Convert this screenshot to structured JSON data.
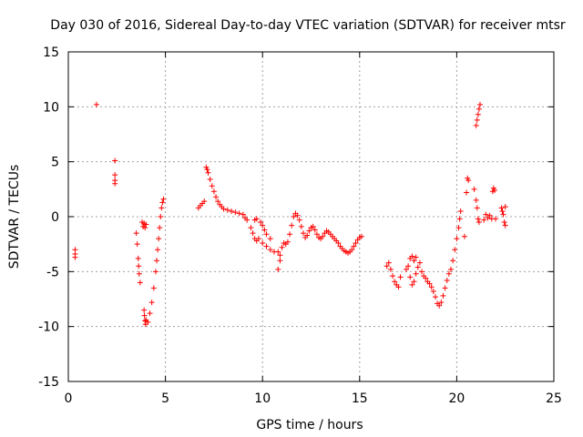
{
  "chart_data": {
    "type": "scatter",
    "title": "Day 030 of 2016, Sidereal Day-to-day VTEC variation (SDTVAR) for receiver mtsr",
    "xlabel": "GPS time / hours",
    "ylabel": "SDTVAR / TECUs",
    "xlim": [
      0,
      25
    ],
    "ylim": [
      -15,
      15
    ],
    "xticks": [
      0,
      5,
      10,
      15,
      20,
      25
    ],
    "yticks": [
      -15,
      -10,
      -5,
      0,
      5,
      10,
      15
    ],
    "xtick_labels": [
      "0",
      "5",
      "10",
      "15",
      "20",
      "25"
    ],
    "ytick_labels": [
      "-15",
      "-10",
      "-5",
      "0",
      "5",
      "10",
      "15"
    ],
    "grid": true,
    "marker": "+",
    "color": "#ff0000",
    "series": [
      {
        "name": "SDTVAR",
        "points": [
          [
            0.35,
            -3.0
          ],
          [
            0.35,
            -3.4
          ],
          [
            0.35,
            -3.7
          ],
          [
            1.45,
            10.2
          ],
          [
            2.4,
            5.1
          ],
          [
            2.4,
            3.8
          ],
          [
            2.4,
            3.3
          ],
          [
            2.4,
            3.0
          ],
          [
            3.5,
            -1.5
          ],
          [
            3.55,
            -2.5
          ],
          [
            3.6,
            -3.8
          ],
          [
            3.62,
            -4.5
          ],
          [
            3.65,
            -5.2
          ],
          [
            3.7,
            -6.0
          ],
          [
            3.8,
            -0.5
          ],
          [
            3.85,
            -0.9
          ],
          [
            3.9,
            -0.6
          ],
          [
            3.95,
            -1.0
          ],
          [
            4.0,
            -0.7
          ],
          [
            3.9,
            -8.5
          ],
          [
            3.92,
            -9.0
          ],
          [
            3.95,
            -9.5
          ],
          [
            3.98,
            -9.8
          ],
          [
            4.0,
            -9.4
          ],
          [
            4.1,
            -9.6
          ],
          [
            4.2,
            -8.8
          ],
          [
            4.3,
            -7.8
          ],
          [
            4.4,
            -6.5
          ],
          [
            4.5,
            -5.0
          ],
          [
            4.55,
            -4.0
          ],
          [
            4.6,
            -3.0
          ],
          [
            4.65,
            -2.0
          ],
          [
            4.7,
            -1.0
          ],
          [
            4.75,
            0.0
          ],
          [
            4.8,
            0.8
          ],
          [
            4.85,
            1.3
          ],
          [
            4.9,
            1.6
          ],
          [
            6.7,
            0.8
          ],
          [
            6.8,
            1.0
          ],
          [
            6.9,
            1.2
          ],
          [
            7.0,
            1.4
          ],
          [
            7.1,
            4.5
          ],
          [
            7.15,
            4.3
          ],
          [
            7.2,
            4.0
          ],
          [
            7.3,
            3.4
          ],
          [
            7.4,
            2.8
          ],
          [
            7.5,
            2.3
          ],
          [
            7.6,
            1.8
          ],
          [
            7.7,
            1.4
          ],
          [
            7.8,
            1.1
          ],
          [
            7.9,
            0.9
          ],
          [
            8.0,
            0.7
          ],
          [
            8.2,
            0.6
          ],
          [
            8.4,
            0.5
          ],
          [
            8.6,
            0.4
          ],
          [
            8.8,
            0.3
          ],
          [
            9.0,
            0.2
          ],
          [
            9.1,
            -0.1
          ],
          [
            9.2,
            -0.3
          ],
          [
            9.4,
            -1.0
          ],
          [
            9.5,
            -1.5
          ],
          [
            9.6,
            -2.0
          ],
          [
            9.7,
            -2.2
          ],
          [
            9.8,
            -2.0
          ],
          [
            9.6,
            -0.3
          ],
          [
            9.7,
            -0.2
          ],
          [
            9.9,
            -0.5
          ],
          [
            10.0,
            -0.8
          ],
          [
            10.1,
            -1.2
          ],
          [
            10.2,
            -1.6
          ],
          [
            10.4,
            -2.0
          ],
          [
            10.0,
            -2.4
          ],
          [
            10.2,
            -2.7
          ],
          [
            10.4,
            -3.0
          ],
          [
            10.6,
            -3.2
          ],
          [
            10.8,
            -3.2
          ],
          [
            10.9,
            -3.5
          ],
          [
            10.8,
            -4.8
          ],
          [
            10.9,
            -4.0
          ],
          [
            11.0,
            -2.8
          ],
          [
            11.1,
            -2.4
          ],
          [
            11.2,
            -2.5
          ],
          [
            11.3,
            -2.3
          ],
          [
            11.4,
            -1.6
          ],
          [
            11.5,
            -0.8
          ],
          [
            11.6,
            0.0
          ],
          [
            11.7,
            0.3
          ],
          [
            11.8,
            0.1
          ],
          [
            11.9,
            -0.3
          ],
          [
            12.0,
            -0.9
          ],
          [
            12.1,
            -1.5
          ],
          [
            12.2,
            -1.9
          ],
          [
            12.3,
            -1.7
          ],
          [
            12.4,
            -1.3
          ],
          [
            12.5,
            -1.0
          ],
          [
            12.6,
            -0.9
          ],
          [
            12.7,
            -1.2
          ],
          [
            12.8,
            -1.6
          ],
          [
            12.9,
            -1.9
          ],
          [
            13.0,
            -2.0
          ],
          [
            13.1,
            -1.8
          ],
          [
            13.2,
            -1.5
          ],
          [
            13.3,
            -1.3
          ],
          [
            13.4,
            -1.4
          ],
          [
            13.5,
            -1.6
          ],
          [
            13.6,
            -1.8
          ],
          [
            13.7,
            -2.0
          ],
          [
            13.8,
            -2.2
          ],
          [
            13.9,
            -2.4
          ],
          [
            14.0,
            -2.7
          ],
          [
            14.1,
            -2.9
          ],
          [
            14.2,
            -3.1
          ],
          [
            14.3,
            -3.2
          ],
          [
            14.4,
            -3.3
          ],
          [
            14.5,
            -3.2
          ],
          [
            14.6,
            -3.0
          ],
          [
            14.7,
            -2.7
          ],
          [
            14.8,
            -2.4
          ],
          [
            14.9,
            -2.1
          ],
          [
            15.0,
            -1.9
          ],
          [
            15.1,
            -1.8
          ],
          [
            16.4,
            -4.5
          ],
          [
            16.5,
            -4.2
          ],
          [
            16.6,
            -4.8
          ],
          [
            16.7,
            -5.4
          ],
          [
            16.8,
            -5.9
          ],
          [
            16.9,
            -6.2
          ],
          [
            17.0,
            -6.4
          ],
          [
            17.1,
            -5.5
          ],
          [
            17.4,
            -4.8
          ],
          [
            17.5,
            -4.5
          ],
          [
            17.6,
            -3.8
          ],
          [
            17.7,
            -3.6
          ],
          [
            17.8,
            -4.0
          ],
          [
            17.9,
            -3.7
          ],
          [
            17.6,
            -5.5
          ],
          [
            17.7,
            -6.2
          ],
          [
            17.8,
            -5.9
          ],
          [
            17.9,
            -5.2
          ],
          [
            18.0,
            -4.6
          ],
          [
            18.1,
            -4.2
          ],
          [
            18.2,
            -5.0
          ],
          [
            18.3,
            -5.4
          ],
          [
            18.4,
            -5.6
          ],
          [
            18.5,
            -5.9
          ],
          [
            18.6,
            -6.1
          ],
          [
            18.7,
            -6.4
          ],
          [
            18.8,
            -6.8
          ],
          [
            18.9,
            -7.3
          ],
          [
            19.0,
            -7.9
          ],
          [
            19.1,
            -8.1
          ],
          [
            19.2,
            -7.8
          ],
          [
            19.3,
            -7.2
          ],
          [
            19.4,
            -6.5
          ],
          [
            19.5,
            -5.8
          ],
          [
            19.6,
            -5.2
          ],
          [
            19.7,
            -4.8
          ],
          [
            19.8,
            -4.0
          ],
          [
            19.9,
            -3.0
          ],
          [
            20.0,
            -2.0
          ],
          [
            20.1,
            -1.0
          ],
          [
            20.15,
            -0.2
          ],
          [
            20.2,
            0.5
          ],
          [
            20.4,
            -1.8
          ],
          [
            20.5,
            2.2
          ],
          [
            20.55,
            3.5
          ],
          [
            20.6,
            3.3
          ],
          [
            20.9,
            2.5
          ],
          [
            21.0,
            1.5
          ],
          [
            21.05,
            0.8
          ],
          [
            21.1,
            -0.2
          ],
          [
            21.15,
            -0.5
          ],
          [
            21.0,
            8.3
          ],
          [
            21.05,
            8.8
          ],
          [
            21.1,
            9.3
          ],
          [
            21.15,
            9.8
          ],
          [
            21.2,
            10.2
          ],
          [
            21.4,
            -0.3
          ],
          [
            21.5,
            0.2
          ],
          [
            21.6,
            -0.1
          ],
          [
            21.7,
            0.1
          ],
          [
            21.8,
            -0.2
          ],
          [
            21.85,
            2.3
          ],
          [
            21.9,
            2.6
          ],
          [
            21.95,
            2.4
          ],
          [
            22.0,
            -0.2
          ],
          [
            22.3,
            0.8
          ],
          [
            22.35,
            0.5
          ],
          [
            22.4,
            0.2
          ],
          [
            22.45,
            -0.5
          ],
          [
            22.5,
            -0.8
          ],
          [
            22.5,
            0.9
          ]
        ]
      }
    ]
  }
}
